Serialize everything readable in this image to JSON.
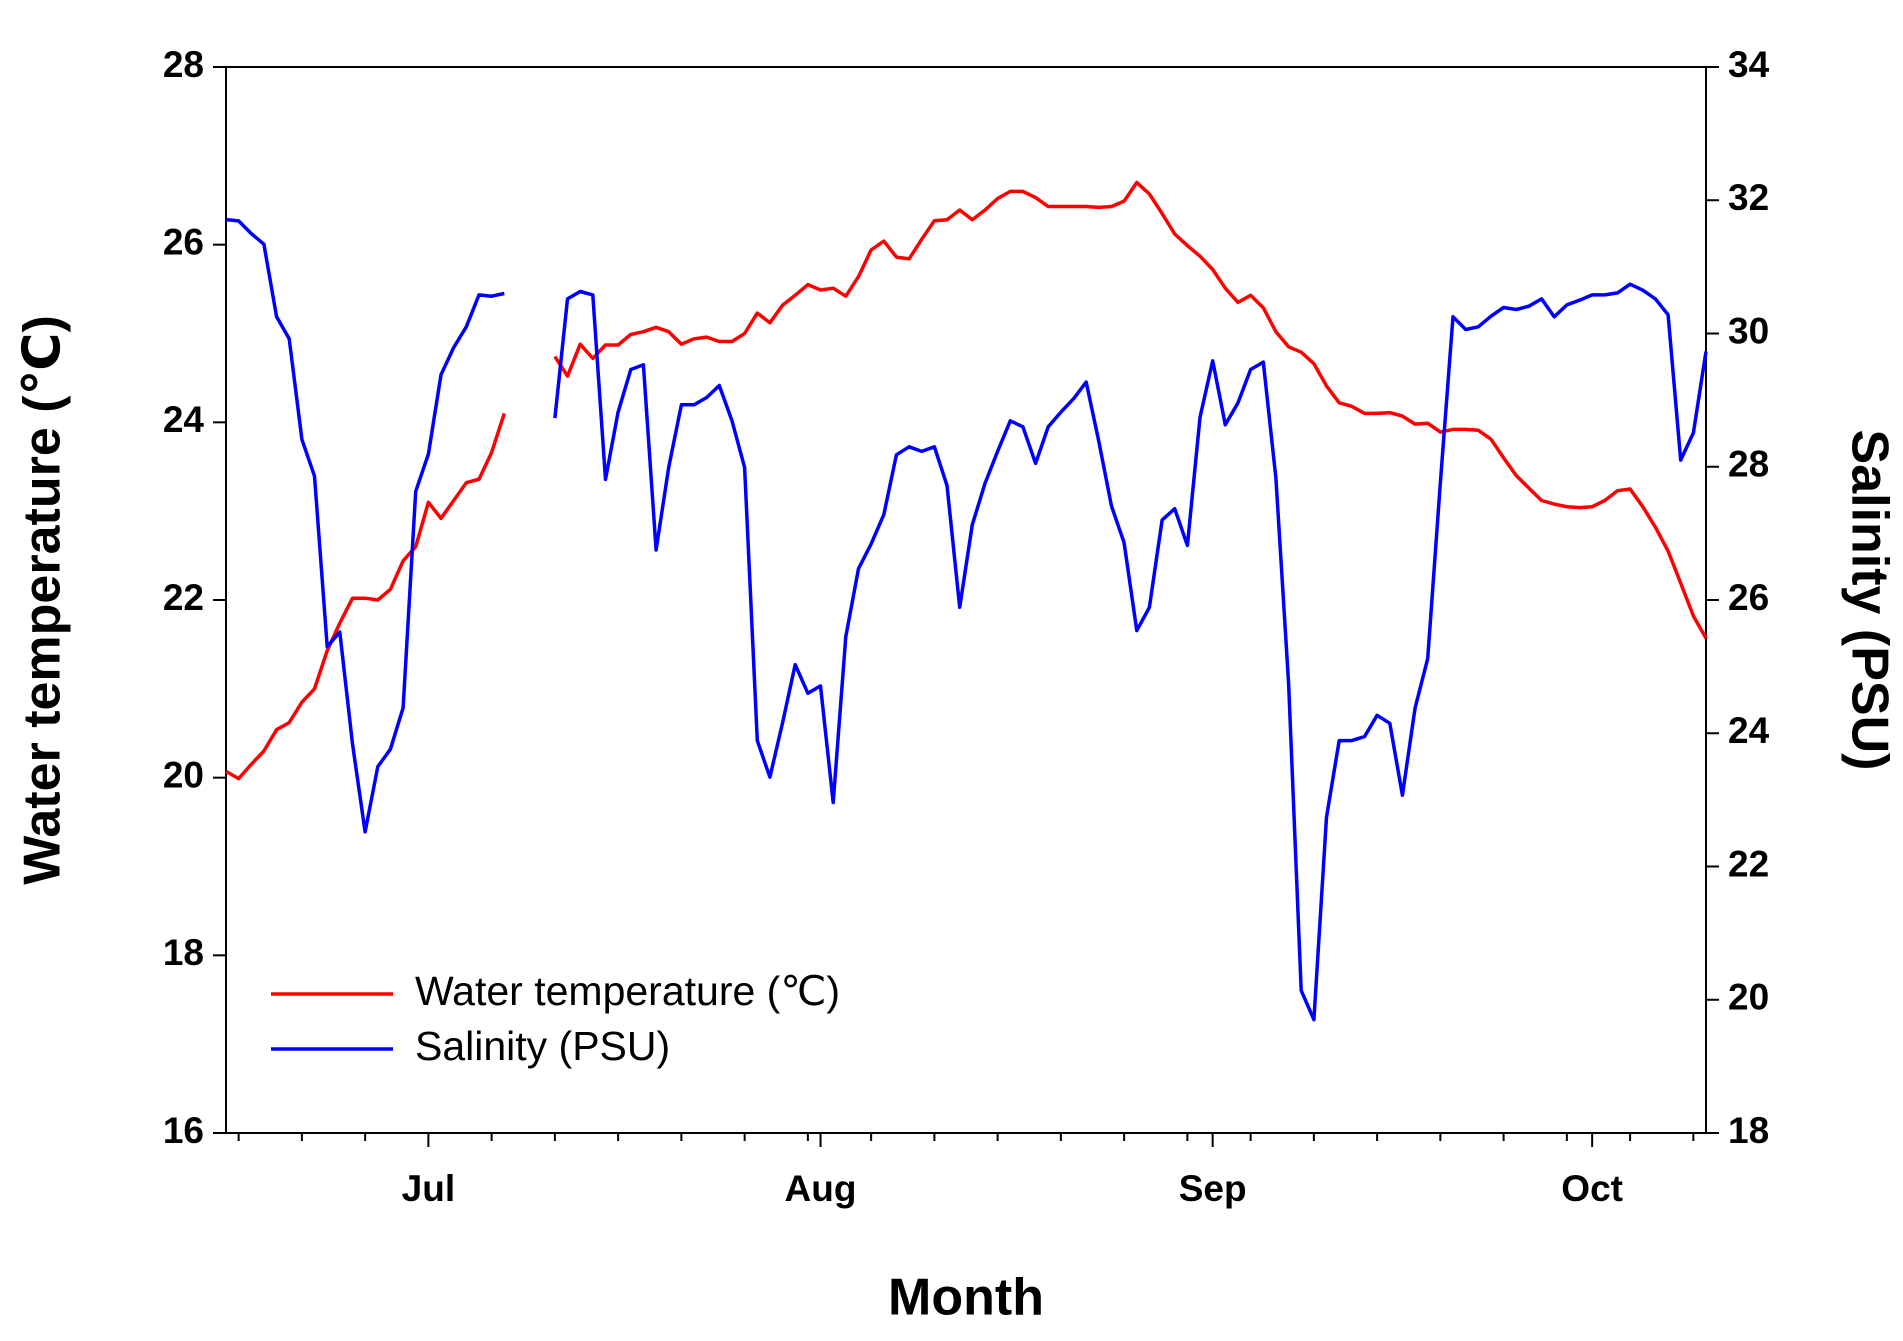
{
  "chart_data": {
    "type": "line",
    "x_label": "Month",
    "y_label": "Water temperature (℃)",
    "y2_label": "Salinity (PSU)",
    "categories": [
      null,
      null,
      null,
      null,
      null,
      null,
      null,
      null,
      null,
      null,
      null,
      null,
      null,
      null,
      null,
      null,
      "Jul",
      null,
      null,
      null,
      null,
      null,
      null,
      null,
      null,
      null,
      null,
      null,
      null,
      null,
      null,
      null,
      null,
      null,
      null,
      null,
      null,
      null,
      null,
      null,
      null,
      null,
      null,
      null,
      null,
      null,
      null,
      "Aug",
      null,
      null,
      null,
      null,
      null,
      null,
      null,
      null,
      null,
      null,
      null,
      null,
      null,
      null,
      null,
      null,
      null,
      null,
      null,
      null,
      null,
      null,
      null,
      null,
      null,
      null,
      null,
      null,
      null,
      null,
      "Sep",
      null,
      null,
      null,
      null,
      null,
      null,
      null,
      null,
      null,
      null,
      null,
      null,
      null,
      null,
      null,
      null,
      null,
      null,
      null,
      null,
      null,
      null,
      null,
      null,
      null,
      null,
      null,
      null,
      null,
      "Oct",
      null,
      null,
      null,
      null,
      null,
      null,
      null,
      null,
      null
    ],
    "series": [
      {
        "name": "Water temperature (℃)",
        "color": "#ff0000",
        "values": [
          20.07,
          19.99,
          20.15,
          20.3,
          20.54,
          20.62,
          20.85,
          21.0,
          21.43,
          21.74,
          22.02,
          22.02,
          22.0,
          22.12,
          22.44,
          22.6,
          23.1,
          22.92,
          23.12,
          23.32,
          23.36,
          23.66,
          24.1,
          null,
          null,
          null,
          24.74,
          24.52,
          24.88,
          24.72,
          24.87,
          24.87,
          24.99,
          25.02,
          25.07,
          25.02,
          24.88,
          24.94,
          24.96,
          24.91,
          24.91,
          25.0,
          25.23,
          25.12,
          25.32,
          25.43,
          25.55,
          25.49,
          25.51,
          25.42,
          25.64,
          25.94,
          26.04,
          25.86,
          25.84,
          26.06,
          26.27,
          26.28,
          26.39,
          26.28,
          26.39,
          26.52,
          26.6,
          26.6,
          26.53,
          26.43,
          26.43,
          26.43,
          26.43,
          26.42,
          26.43,
          26.49,
          26.7,
          26.57,
          26.35,
          26.12,
          25.99,
          25.87,
          25.72,
          25.51,
          25.35,
          25.43,
          25.29,
          25.02,
          24.85,
          24.79,
          24.66,
          24.41,
          24.22,
          24.18,
          24.1,
          24.1,
          24.11,
          24.07,
          23.98,
          23.99,
          23.89,
          23.92,
          23.92,
          23.91,
          23.81,
          23.6,
          23.4,
          23.26,
          23.12,
          23.08,
          23.05,
          23.04,
          23.05,
          23.12,
          23.23,
          23.25,
          23.05,
          22.82,
          22.55,
          22.19,
          21.82,
          21.57
        ]
      },
      {
        "name": "Salinity (PSU)",
        "color": "#0000ff",
        "axis": "y2",
        "values": [
          31.71,
          31.69,
          31.5,
          31.34,
          30.25,
          29.92,
          28.41,
          27.86,
          25.3,
          25.52,
          23.84,
          22.52,
          23.5,
          23.76,
          24.38,
          27.63,
          28.19,
          29.38,
          29.79,
          30.1,
          30.58,
          30.56,
          30.6,
          null,
          null,
          null,
          28.73,
          30.52,
          30.63,
          30.58,
          27.81,
          28.82,
          29.46,
          29.53,
          26.75,
          27.99,
          28.93,
          28.93,
          29.04,
          29.22,
          28.69,
          27.99,
          23.89,
          23.34,
          24.16,
          25.03,
          24.6,
          24.71,
          22.96,
          25.45,
          26.47,
          26.84,
          27.28,
          28.18,
          28.3,
          28.23,
          28.3,
          27.72,
          25.89,
          27.13,
          27.75,
          28.23,
          28.69,
          28.6,
          28.05,
          28.6,
          28.82,
          29.02,
          29.27,
          28.38,
          27.41,
          26.86,
          25.54,
          25.89,
          27.2,
          27.37,
          26.82,
          28.74,
          29.59,
          28.63,
          28.96,
          29.46,
          29.57,
          27.83,
          24.75,
          20.14,
          19.7,
          22.74,
          23.89,
          23.89,
          23.95,
          24.27,
          24.15,
          23.07,
          24.38,
          25.12,
          27.77,
          30.25,
          30.06,
          30.1,
          30.26,
          30.39,
          30.36,
          30.41,
          30.52,
          30.25,
          30.43,
          30.5,
          30.58,
          30.58,
          30.61,
          30.74,
          30.65,
          30.52,
          30.28,
          28.1,
          28.51,
          29.73
        ]
      }
    ],
    "ylim": [
      16,
      28
    ],
    "yticks": [
      16,
      18,
      20,
      22,
      24,
      26,
      28
    ],
    "y2lim": [
      18,
      34
    ],
    "y2ticks": [
      18,
      20,
      22,
      24,
      26,
      28,
      30,
      32,
      34
    ],
    "legend": "lower left",
    "grid": false
  }
}
